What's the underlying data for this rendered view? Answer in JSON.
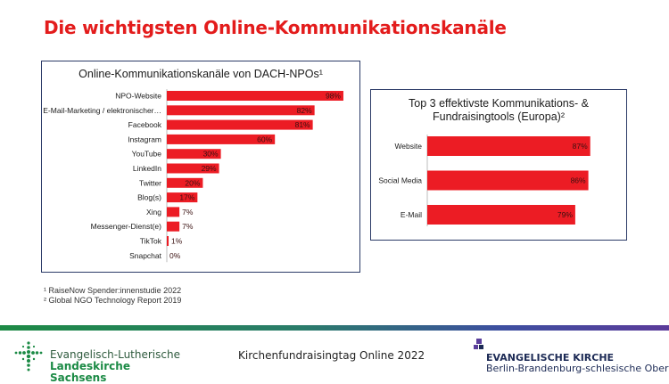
{
  "slide": {
    "title": "Die wichtigsten Online-Kommunikationskanäle"
  },
  "chart_data": [
    {
      "type": "bar",
      "orientation": "horizontal",
      "title": "Online-Kommunikationskanäle von DACH-NPOs¹",
      "categories": [
        "NPO-Website",
        "E-Mail-Marketing / elektronischer…",
        "Facebook",
        "Instagram",
        "YouTube",
        "LinkedIn",
        "Twitter",
        "Blog(s)",
        "Xing",
        "Messenger-Dienst(e)",
        "TikTok",
        "Snapchat"
      ],
      "values": [
        98,
        82,
        81,
        60,
        30,
        29,
        20,
        17,
        7,
        7,
        1,
        0
      ],
      "value_labels": [
        "98%",
        "82%",
        "81%",
        "60%",
        "30%",
        "29%",
        "20%",
        "17%",
        "7%",
        "7%",
        "1%",
        "0%"
      ],
      "xlim": [
        0,
        100
      ],
      "unit": "%",
      "color": "#ec1c24"
    },
    {
      "type": "bar",
      "orientation": "horizontal",
      "title_line1": "Top 3 effektivste Kommunikations- &",
      "title_line2": "Fundraisingtools (Europa)²",
      "categories": [
        "Website",
        "Social Media",
        "E-Mail"
      ],
      "values": [
        87,
        86,
        79
      ],
      "value_labels": [
        "87%",
        "86%",
        "79%"
      ],
      "xlim": [
        0,
        100
      ],
      "unit": "%",
      "color": "#ec1c24"
    }
  ],
  "footnotes": [
    "¹ RaiseNow Spender:innenstudie 2022",
    "² Global NGO Technology Report 2019"
  ],
  "footer": {
    "left_logo_line1": "Evangelisch-Lutherische",
    "left_logo_line2": "Landeskirche Sachsens",
    "center_text": "Kirchenfundraisingtag Online 2022",
    "right_logo_line1": "EVANGELISCHE KIRCHE",
    "right_logo_line2": "Berlin-Brandenburg-schlesische Oberlausitz"
  },
  "colors": {
    "title": "#e31c1c",
    "bar": "#ec1c24",
    "panel_border": "#2b3a67"
  }
}
